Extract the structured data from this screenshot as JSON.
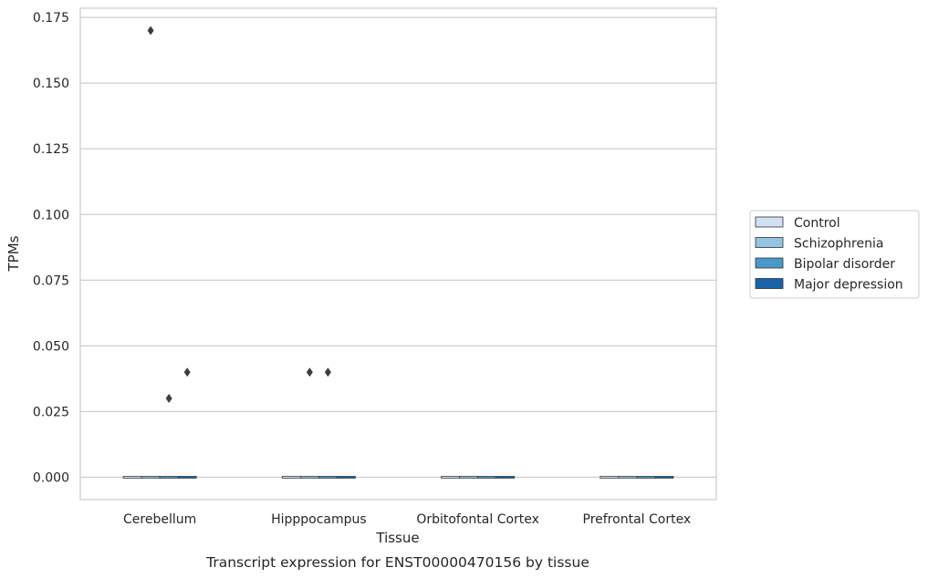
{
  "chart_data": {
    "type": "box",
    "title": "Transcript expression for ENST00000470156 by tissue",
    "xlabel": "Tissue",
    "ylabel": "TPMs",
    "ylim": [
      -0.0085,
      0.1785
    ],
    "yticks": [
      "0.000",
      "0.025",
      "0.050",
      "0.075",
      "0.100",
      "0.125",
      "0.150",
      "0.175"
    ],
    "ytick_values": [
      0,
      0.025,
      0.05,
      0.075,
      0.1,
      0.125,
      0.15,
      0.175
    ],
    "categories": [
      "Cerebellum",
      "Hipppocampus",
      "Orbitofontal Cortex",
      "Prefrontal Cortex"
    ],
    "grid": true,
    "legend_position": "right",
    "series": [
      {
        "name": "Control",
        "color": "#d0e1f2",
        "median": [
          0,
          0,
          0,
          0
        ],
        "outliers": [
          [],
          [],
          [],
          []
        ]
      },
      {
        "name": "Schizophrenia",
        "color": "#94c4df",
        "median": [
          0,
          0,
          0,
          0
        ],
        "outliers": [
          [
            0.17
          ],
          [
            0.04
          ],
          [],
          []
        ]
      },
      {
        "name": "Bipolar disorder",
        "color": "#4a98c9",
        "median": [
          0,
          0,
          0,
          0
        ],
        "outliers": [
          [
            0.03
          ],
          [
            0.04
          ],
          [],
          []
        ]
      },
      {
        "name": "Major depression",
        "color": "#1764ab",
        "median": [
          0,
          0,
          0,
          0
        ],
        "outliers": [
          [
            0.04
          ],
          [],
          [],
          []
        ]
      }
    ]
  }
}
